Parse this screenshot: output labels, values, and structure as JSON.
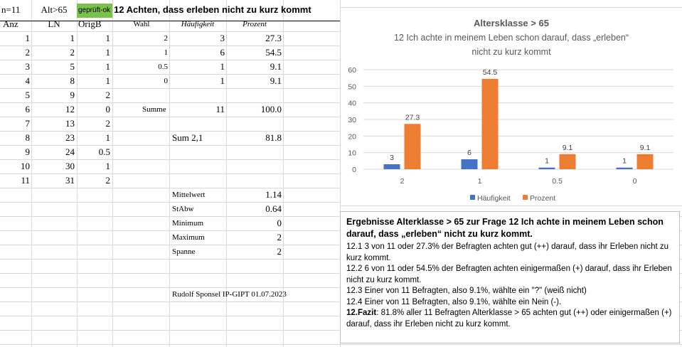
{
  "header": {
    "n": "n=11",
    "alt": "Alt>65",
    "checked": "geprüft-ok",
    "title": "12 Achten, dass erleben nicht zu kurz kommt"
  },
  "columns": {
    "anz": "Anz",
    "ln": "LN",
    "origb": "OrigB",
    "wahl": "Wahl",
    "haeufigkeit": "Häufigkeit",
    "prozent": "Prozent"
  },
  "rows": [
    {
      "anz": "1",
      "ln": "1",
      "origb": "1"
    },
    {
      "anz": "2",
      "ln": "2",
      "origb": "1"
    },
    {
      "anz": "3",
      "ln": "5",
      "origb": "1"
    },
    {
      "anz": "4",
      "ln": "8",
      "origb": "1"
    },
    {
      "anz": "5",
      "ln": "9",
      "origb": "2"
    },
    {
      "anz": "6",
      "ln": "12",
      "origb": "0"
    },
    {
      "anz": "7",
      "ln": "13",
      "origb": "2"
    },
    {
      "anz": "8",
      "ln": "23",
      "origb": "1"
    },
    {
      "anz": "9",
      "ln": "24",
      "origb": "0.5"
    },
    {
      "anz": "10",
      "ln": "30",
      "origb": "1"
    },
    {
      "anz": "11",
      "ln": "31",
      "origb": "2"
    }
  ],
  "freq": [
    {
      "wahl": "2",
      "haeufigkeit": "3",
      "prozent": "27.3"
    },
    {
      "wahl": "1",
      "haeufigkeit": "6",
      "prozent": "54.5"
    },
    {
      "wahl": "0.5",
      "haeufigkeit": "1",
      "prozent": "9.1"
    },
    {
      "wahl": "0",
      "haeufigkeit": "1",
      "prozent": "9.1"
    }
  ],
  "summe": {
    "label": "Summe",
    "haeufigkeit": "11",
    "prozent": "100.0"
  },
  "sum21": {
    "label": "Sum 2,1",
    "value": "81.8"
  },
  "stats": [
    {
      "label": "Mittelwert",
      "value": "1.14"
    },
    {
      "label": "StAbw",
      "value": "0.64"
    },
    {
      "label": "Minimum",
      "value": "0"
    },
    {
      "label": "Maximum",
      "value": "2"
    },
    {
      "label": "Spanne",
      "value": "2"
    }
  ],
  "author": "Rudolf Sponsel IP-GIPT 01.07.2023",
  "chart_data": {
    "type": "bar",
    "title": "Altersklasse > 65",
    "subtitle_lines": [
      "12 Ich achte in meinem Leben schon darauf,  dass „erleben“",
      "nicht zu kurz kommt"
    ],
    "categories": [
      "2",
      "1",
      "0.5",
      "0"
    ],
    "series": [
      {
        "name": "Häufigkeit",
        "values": [
          3,
          6,
          1,
          1
        ],
        "labels": [
          "3",
          "6",
          "1",
          "1"
        ],
        "color": "#4472c4"
      },
      {
        "name": "Prozent",
        "values": [
          27.3,
          54.5,
          9.1,
          9.1
        ],
        "labels": [
          "27.3",
          "54.5",
          "9.1",
          "9.1"
        ],
        "color": "#ed7d31"
      }
    ],
    "ylim": [
      0,
      60
    ],
    "yticks": [
      "0",
      "10",
      "20",
      "30",
      "40",
      "50",
      "60"
    ],
    "grid": true,
    "legend": "bottom"
  },
  "results": {
    "title": "Ergebnisse  Alterklasse > 65 zur Frage 12 Ich achte in meinem Leben schon darauf, dass „erleben“  nicht zu kurz kommt.",
    "lines": [
      "12.1   3 von 11 oder 27.3% der Befragten achten gut (++) darauf, dass ihr Erleben nicht zu kurz kommt.",
      "12.2   6 von 11 oder 54.5% der Befragten achten einigermaßen (+) darauf, dass ihr Erleben nicht zu kurz kommt.",
      "12.3  Einer von 11 Befragten, also 9.1%, wählte ein \"?\" (weiß nicht)",
      "12.4  Einer von 11 Befragten, also 9.1%, wählte ein Nein (-)."
    ],
    "fazit_label": "12.Fazit",
    "fazit_text": ": 81.8%  aller 11 Befragten Alterklasse > 65 achten gut (++) oder einigermaßen (+) darauf, dass ihr Erleben nicht zu kurz kommt."
  }
}
